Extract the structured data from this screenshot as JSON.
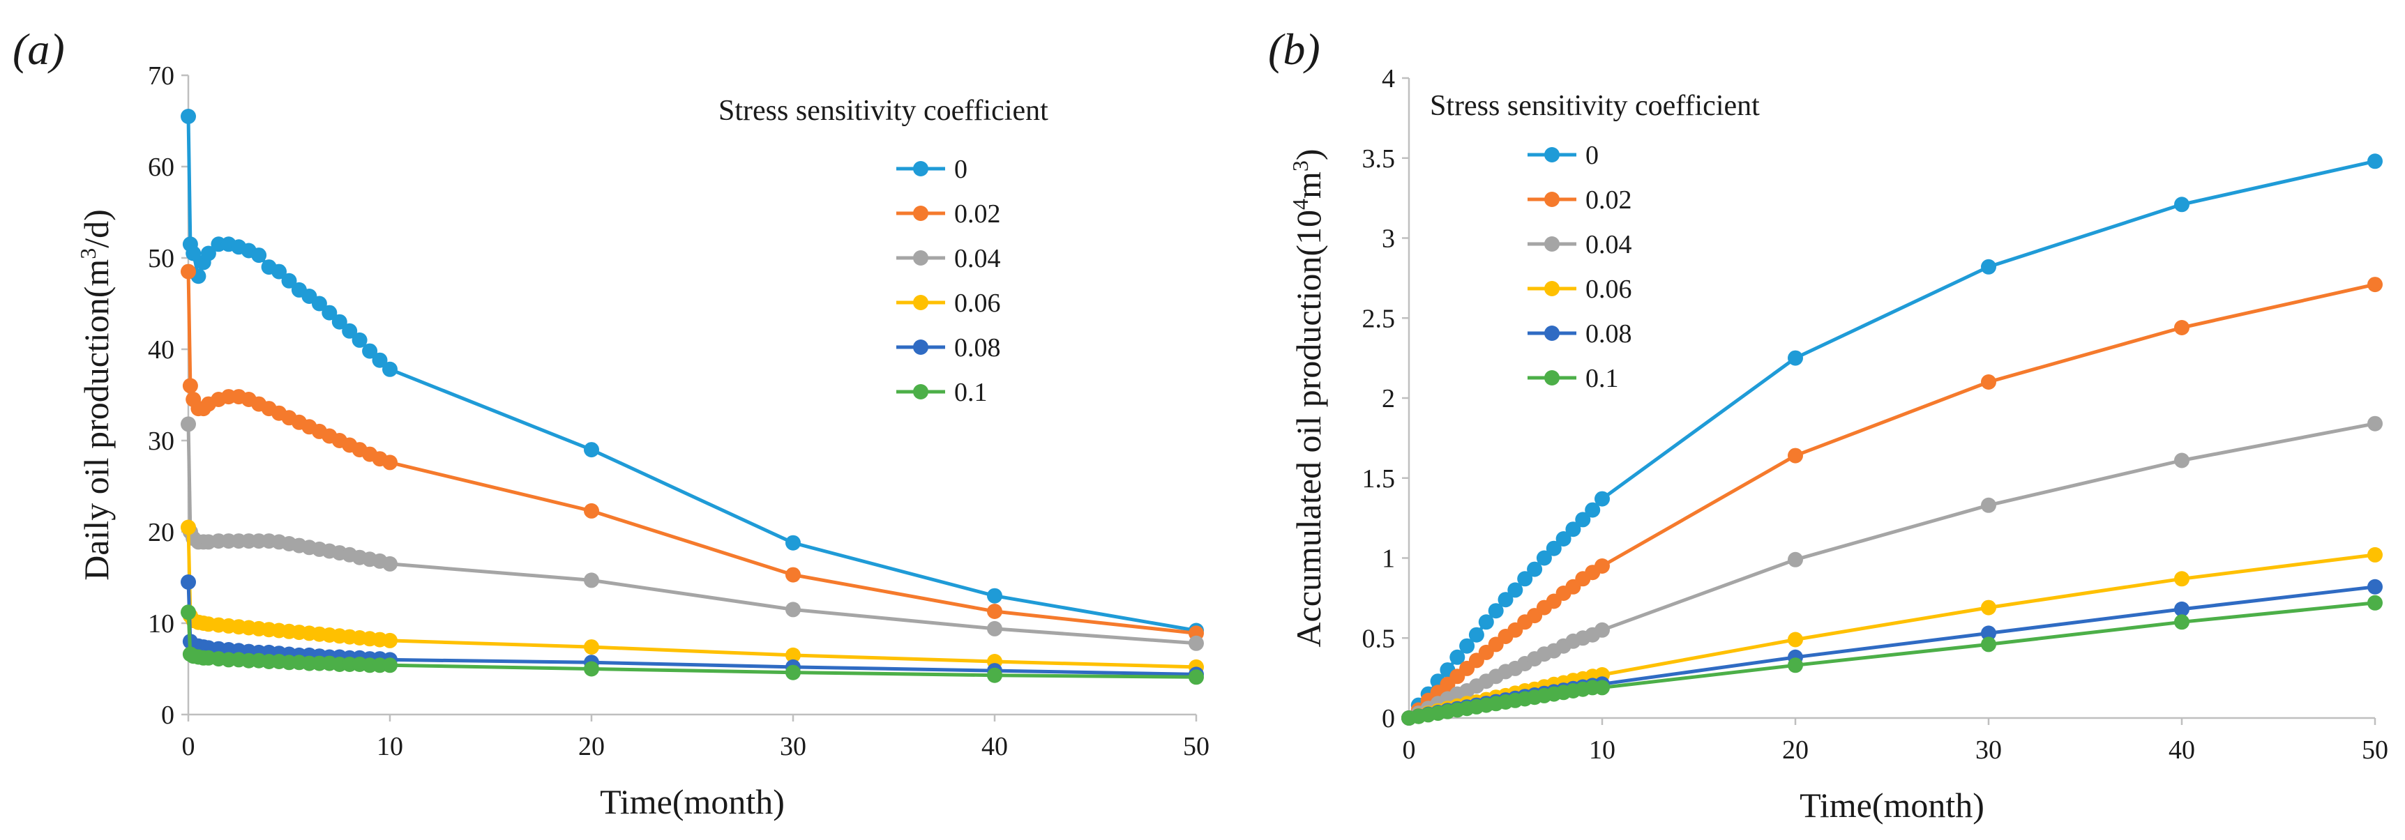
{
  "chart_data": [
    {
      "panel_label": "(a)",
      "type": "line",
      "title": "",
      "xlabel": "Time(month)",
      "ylabel": "Daily oil production(m³/d)",
      "ylabel_parts": [
        "Daily oil production(m",
        "3",
        "/d)"
      ],
      "xlim": [
        0,
        50
      ],
      "ylim": [
        0,
        70
      ],
      "xticks": [
        "0",
        "10",
        "20",
        "30",
        "40",
        "50"
      ],
      "yticks": [
        "0",
        "10",
        "20",
        "30",
        "40",
        "50",
        "60",
        "70"
      ],
      "grid": false,
      "legend_title": "Stress sensitivity coefficient",
      "legend_position": "top-right",
      "series": [
        {
          "name": "0",
          "color": "#1f9bd7",
          "x": [
            0,
            0.1,
            0.25,
            0.5,
            0.75,
            1,
            1.5,
            2,
            2.5,
            3,
            3.5,
            4,
            4.5,
            5,
            5.5,
            6,
            6.5,
            7,
            7.5,
            8,
            8.5,
            9,
            9.5,
            10,
            20,
            30,
            40,
            50
          ],
          "y": [
            65.5,
            51.5,
            50.5,
            48,
            49.5,
            50.5,
            51.5,
            51.5,
            51.2,
            50.8,
            50.3,
            49,
            48.5,
            47.5,
            46.5,
            45.8,
            45,
            44,
            43,
            42,
            41,
            39.8,
            38.8,
            37.8,
            29,
            18.8,
            13,
            9.2
          ]
        },
        {
          "name": "0.02",
          "color": "#f57a2c",
          "x": [
            0,
            0.1,
            0.25,
            0.5,
            0.75,
            1,
            1.5,
            2,
            2.5,
            3,
            3.5,
            4,
            4.5,
            5,
            5.5,
            6,
            6.5,
            7,
            7.5,
            8,
            8.5,
            9,
            9.5,
            10,
            20,
            30,
            40,
            50
          ],
          "y": [
            48.5,
            36,
            34.5,
            33.5,
            33.5,
            34,
            34.5,
            34.8,
            34.8,
            34.5,
            34,
            33.5,
            33,
            32.5,
            32,
            31.5,
            31,
            30.5,
            30,
            29.5,
            29,
            28.5,
            28,
            27.6,
            22.3,
            15.3,
            11.3,
            8.9
          ]
        },
        {
          "name": "0.04",
          "color": "#a5a5a5",
          "x": [
            0,
            0.1,
            0.25,
            0.5,
            0.75,
            1,
            1.5,
            2,
            2.5,
            3,
            3.5,
            4,
            4.5,
            5,
            5.5,
            6,
            6.5,
            7,
            7.5,
            8,
            8.5,
            9,
            9.5,
            10,
            20,
            30,
            40,
            50
          ],
          "y": [
            31.8,
            20,
            19.3,
            18.9,
            18.9,
            18.9,
            19,
            19,
            19,
            19,
            19,
            19,
            18.9,
            18.7,
            18.5,
            18.3,
            18.1,
            17.9,
            17.7,
            17.5,
            17.2,
            17,
            16.8,
            16.5,
            14.7,
            11.5,
            9.4,
            7.8
          ]
        },
        {
          "name": "0.06",
          "color": "#ffc000",
          "x": [
            0,
            0.1,
            0.25,
            0.5,
            0.75,
            1,
            1.5,
            2,
            2.5,
            3,
            3.5,
            4,
            4.5,
            5,
            5.5,
            6,
            6.5,
            7,
            7.5,
            8,
            8.5,
            9,
            9.5,
            10,
            20,
            30,
            40,
            50
          ],
          "y": [
            20.5,
            10.8,
            10.3,
            10.1,
            10,
            9.9,
            9.8,
            9.7,
            9.6,
            9.5,
            9.4,
            9.3,
            9.2,
            9.1,
            9.0,
            8.9,
            8.8,
            8.7,
            8.6,
            8.5,
            8.4,
            8.3,
            8.2,
            8.1,
            7.4,
            6.5,
            5.8,
            5.2
          ]
        },
        {
          "name": "0.08",
          "color": "#2f6bc3",
          "x": [
            0,
            0.1,
            0.25,
            0.5,
            0.75,
            1,
            1.5,
            2,
            2.5,
            3,
            3.5,
            4,
            4.5,
            5,
            5.5,
            6,
            6.5,
            7,
            7.5,
            8,
            8.5,
            9,
            9.5,
            10,
            20,
            30,
            40,
            50
          ],
          "y": [
            14.5,
            8,
            7.6,
            7.5,
            7.4,
            7.3,
            7.2,
            7.1,
            7.0,
            6.9,
            6.8,
            6.8,
            6.7,
            6.6,
            6.5,
            6.5,
            6.4,
            6.3,
            6.3,
            6.2,
            6.2,
            6.1,
            6.1,
            6.0,
            5.7,
            5.2,
            4.8,
            4.4
          ]
        },
        {
          "name": "0.1",
          "color": "#4caf48",
          "x": [
            0,
            0.1,
            0.25,
            0.5,
            0.75,
            1,
            1.5,
            2,
            2.5,
            3,
            3.5,
            4,
            4.5,
            5,
            5.5,
            6,
            6.5,
            7,
            7.5,
            8,
            8.5,
            9,
            9.5,
            10,
            20,
            30,
            40,
            50
          ],
          "y": [
            11.2,
            6.6,
            6.4,
            6.3,
            6.2,
            6.2,
            6.1,
            6.0,
            6.0,
            5.9,
            5.9,
            5.8,
            5.8,
            5.7,
            5.7,
            5.6,
            5.6,
            5.6,
            5.5,
            5.5,
            5.5,
            5.4,
            5.4,
            5.4,
            5.0,
            4.6,
            4.3,
            4.1
          ]
        }
      ]
    },
    {
      "panel_label": "(b)",
      "type": "line",
      "title": "",
      "xlabel": "Time(month)",
      "ylabel": "Accumulated oil production(10⁴m³)",
      "ylabel_parts": [
        "Accumulated oil production(10",
        "4",
        "m",
        "3",
        ")"
      ],
      "xlim": [
        0,
        50
      ],
      "ylim": [
        0,
        4
      ],
      "xticks": [
        "0",
        "10",
        "20",
        "30",
        "40",
        "50"
      ],
      "yticks": [
        "0",
        "0.5",
        "1",
        "1.5",
        "2",
        "2.5",
        "3",
        "3.5",
        "4"
      ],
      "grid": false,
      "legend_title": "Stress sensitivity coefficient",
      "legend_position": "top-left",
      "series": [
        {
          "name": "0",
          "color": "#1f9bd7",
          "x": [
            0,
            0.5,
            1,
            1.5,
            2,
            2.5,
            3,
            3.5,
            4,
            4.5,
            5,
            5.5,
            6,
            6.5,
            7,
            7.5,
            8,
            8.5,
            9,
            9.5,
            10,
            20,
            30,
            40,
            50
          ],
          "y": [
            0,
            0.08,
            0.15,
            0.23,
            0.3,
            0.38,
            0.45,
            0.52,
            0.6,
            0.67,
            0.74,
            0.8,
            0.87,
            0.93,
            1.0,
            1.06,
            1.12,
            1.18,
            1.24,
            1.3,
            1.37,
            2.25,
            2.82,
            3.21,
            3.48
          ]
        },
        {
          "name": "0.02",
          "color": "#f57a2c",
          "x": [
            0,
            0.5,
            1,
            1.5,
            2,
            2.5,
            3,
            3.5,
            4,
            4.5,
            5,
            5.5,
            6,
            6.5,
            7,
            7.5,
            8,
            8.5,
            9,
            9.5,
            10,
            20,
            30,
            40,
            50
          ],
          "y": [
            0,
            0.05,
            0.11,
            0.16,
            0.21,
            0.26,
            0.31,
            0.36,
            0.41,
            0.46,
            0.51,
            0.55,
            0.6,
            0.64,
            0.69,
            0.73,
            0.78,
            0.82,
            0.87,
            0.91,
            0.95,
            1.64,
            2.1,
            2.44,
            2.71
          ]
        },
        {
          "name": "0.04",
          "color": "#a5a5a5",
          "x": [
            0,
            0.5,
            1,
            1.5,
            2,
            2.5,
            3,
            3.5,
            4,
            4.5,
            5,
            5.5,
            6,
            6.5,
            7,
            7.5,
            8,
            8.5,
            9,
            9.5,
            10,
            20,
            30,
            40,
            50
          ],
          "y": [
            0,
            0.03,
            0.06,
            0.09,
            0.12,
            0.15,
            0.17,
            0.2,
            0.23,
            0.26,
            0.29,
            0.31,
            0.34,
            0.37,
            0.4,
            0.42,
            0.45,
            0.48,
            0.5,
            0.52,
            0.55,
            0.99,
            1.33,
            1.61,
            1.84
          ]
        },
        {
          "name": "0.06",
          "color": "#ffc000",
          "x": [
            0,
            0.5,
            1,
            1.5,
            2,
            2.5,
            3,
            3.5,
            4,
            4.5,
            5,
            5.5,
            6,
            6.5,
            7,
            7.5,
            8,
            8.5,
            9,
            9.5,
            10,
            20,
            30,
            40,
            50
          ],
          "y": [
            0,
            0.015,
            0.03,
            0.045,
            0.06,
            0.075,
            0.09,
            0.1,
            0.115,
            0.13,
            0.14,
            0.155,
            0.17,
            0.18,
            0.195,
            0.21,
            0.22,
            0.235,
            0.245,
            0.26,
            0.27,
            0.49,
            0.69,
            0.87,
            1.02
          ]
        },
        {
          "name": "0.08",
          "color": "#2f6bc3",
          "x": [
            0,
            0.5,
            1,
            1.5,
            2,
            2.5,
            3,
            3.5,
            4,
            4.5,
            5,
            5.5,
            6,
            6.5,
            7,
            7.5,
            8,
            8.5,
            9,
            9.5,
            10,
            20,
            30,
            40,
            50
          ],
          "y": [
            0,
            0.012,
            0.024,
            0.035,
            0.047,
            0.058,
            0.069,
            0.08,
            0.091,
            0.102,
            0.113,
            0.123,
            0.134,
            0.144,
            0.154,
            0.164,
            0.174,
            0.184,
            0.194,
            0.203,
            0.212,
            0.38,
            0.53,
            0.68,
            0.82
          ]
        },
        {
          "name": "0.1",
          "color": "#4caf48",
          "x": [
            0,
            0.5,
            1,
            1.5,
            2,
            2.5,
            3,
            3.5,
            4,
            4.5,
            5,
            5.5,
            6,
            6.5,
            7,
            7.5,
            8,
            8.5,
            9,
            9.5,
            10,
            20,
            30,
            40,
            50
          ],
          "y": [
            0,
            0.01,
            0.02,
            0.03,
            0.04,
            0.05,
            0.06,
            0.07,
            0.08,
            0.09,
            0.1,
            0.11,
            0.12,
            0.13,
            0.14,
            0.15,
            0.16,
            0.17,
            0.18,
            0.19,
            0.19,
            0.33,
            0.46,
            0.6,
            0.72
          ]
        }
      ]
    }
  ]
}
